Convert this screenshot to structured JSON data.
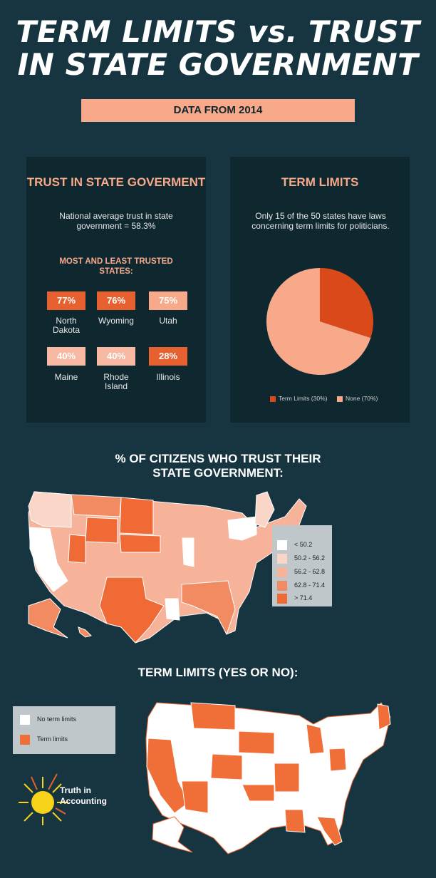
{
  "title": {
    "line1": "TERM LIMITS vs. TRUST",
    "line2": "IN STATE GOVERNMENT"
  },
  "subtitle": "DATA FROM 2014",
  "trust_panel": {
    "heading": "TRUST IN STATE GOVERMENT",
    "description": "National average trust in state government = 58.3%",
    "most_least": "MOST AND LEAST TRUSTED STATES:",
    "states": [
      {
        "pct": "77%",
        "name": "North Dakota",
        "color": "#e6612f"
      },
      {
        "pct": "76%",
        "name": "Wyoming",
        "color": "#e6612f"
      },
      {
        "pct": "75%",
        "name": "Utah",
        "color": "#f7a98a"
      },
      {
        "pct": "40%",
        "name": "Maine",
        "color": "#f7b9a3"
      },
      {
        "pct": "40%",
        "name": "Rhode Island",
        "color": "#f7b9a3"
      },
      {
        "pct": "28%",
        "name": "Illinois",
        "color": "#e6612f"
      }
    ]
  },
  "term_panel": {
    "heading": "TERM LIMITS",
    "description": "Only 15 of the 50 states have laws concerning term limits for politicians."
  },
  "chart_data": [
    {
      "type": "pie",
      "title": "TERM LIMITS",
      "slices": [
        {
          "label": "Term Limits (30%)",
          "value": 30,
          "color": "#d9491a"
        },
        {
          "label": "None (70%)",
          "value": 70,
          "color": "#f7a98a"
        }
      ]
    }
  ],
  "trust_map": {
    "title": "% OF CITIZENS WHO TRUST THEIR STATE GOVERNMENT:",
    "legend": [
      {
        "label": "< 50.2",
        "color": "#ffffff"
      },
      {
        "label": "50.2 - 56.2",
        "color": "#f9d6c8"
      },
      {
        "label": "56.2 - 62.8",
        "color": "#f6b39a"
      },
      {
        "label": "62.8 - 71.4",
        "color": "#f28a62"
      },
      {
        "label": "> 71.4",
        "color": "#ef6a35"
      }
    ]
  },
  "term_map": {
    "title": "TERM LIMITS (YES OR NO):",
    "legend": [
      {
        "label": "No term limits",
        "color": "#ffffff"
      },
      {
        "label": "Term limits",
        "color": "#f06e37"
      }
    ]
  },
  "logo": {
    "line1": "Truth in",
    "line2": "Accounting"
  }
}
